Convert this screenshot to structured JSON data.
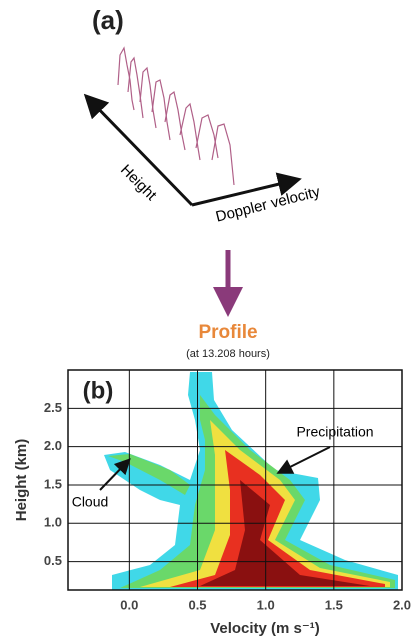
{
  "panel_a": {
    "label": "(a)",
    "height_axis": "Height",
    "velocity_axis": "Doppler velocity"
  },
  "profile": {
    "title": "Profile",
    "subtitle": "(at 13.208 hours)"
  },
  "chart_data": {
    "type": "heatmap",
    "label": "(b)",
    "x_label": "Velocity (m s⁻¹)",
    "y_label": "Height (km)",
    "annotations": [
      "Precipitation",
      "Cloud"
    ],
    "xlim": [
      -0.45,
      2.0
    ],
    "xticks": [
      {
        "value": 0,
        "label": "0.0"
      },
      0.5,
      {
        "value": 1,
        "label": "1.0"
      },
      1.5,
      {
        "value": 2,
        "label": "2.0"
      }
    ],
    "ylim": [
      0.13,
      3.0
    ],
    "yticks": [
      0.5,
      {
        "value": 1,
        "label": "1.0"
      },
      1.5,
      {
        "value": 2,
        "label": "2.0"
      },
      2.5
    ],
    "grid": true
  }
}
